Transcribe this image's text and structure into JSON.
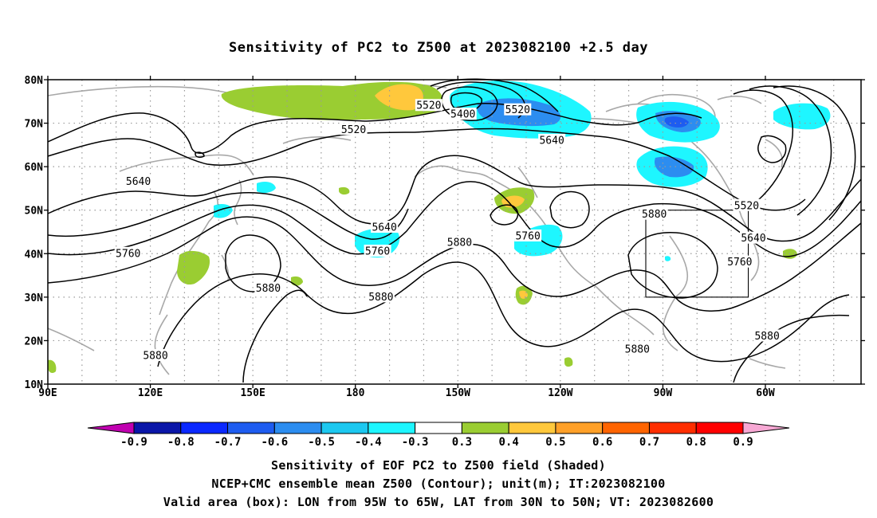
{
  "title": "Sensitivity of PC2 to Z500 at 2023082100 +2.5 day",
  "map": {
    "lon_labels": [
      "90E",
      "120E",
      "150E",
      "180",
      "150W",
      "120W",
      "90W",
      "60W"
    ],
    "lat_labels": [
      "80N",
      "70N",
      "60N",
      "50N",
      "40N",
      "30N",
      "20N",
      "10N"
    ],
    "contour_labels": [
      {
        "text": "5520",
        "lon": -158.5,
        "lat": 74.0
      },
      {
        "text": "5400",
        "lon": -148.5,
        "lat": 72.0
      },
      {
        "text": "5520",
        "lon": -132.5,
        "lat": 73.0
      },
      {
        "text": "5520",
        "lon": -180.5,
        "lat": 68.5
      },
      {
        "text": "5640",
        "lon": -122.5,
        "lat": 66.0
      },
      {
        "text": "5640",
        "lon": 116.5,
        "lat": 56.5
      },
      {
        "text": "5520",
        "lon": -65.5,
        "lat": 51.0
      },
      {
        "text": "5880",
        "lon": -92.5,
        "lat": 49.0
      },
      {
        "text": "5640",
        "lon": -171.5,
        "lat": 46.0
      },
      {
        "text": "5760",
        "lon": -129.5,
        "lat": 44.0
      },
      {
        "text": "5640",
        "lon": -63.5,
        "lat": 43.5
      },
      {
        "text": "5880",
        "lon": -149.5,
        "lat": 42.5
      },
      {
        "text": "5760",
        "lon": -173.5,
        "lat": 40.5
      },
      {
        "text": "5760",
        "lon": 113.5,
        "lat": 40.0
      },
      {
        "text": "5760",
        "lon": -67.5,
        "lat": 38.0
      },
      {
        "text": "5880",
        "lon": 154.5,
        "lat": 32.0
      },
      {
        "text": "5880",
        "lon": -172.5,
        "lat": 30.0
      },
      {
        "text": "5880",
        "lon": -59.5,
        "lat": 21.0
      },
      {
        "text": "5880",
        "lon": -97.5,
        "lat": 18.0
      },
      {
        "text": "5880",
        "lon": 121.5,
        "lat": 16.5
      }
    ],
    "valid_box": {
      "lon_min": -95,
      "lon_max": -65,
      "lat_min": 30,
      "lat_max": 50
    }
  },
  "colorbar": {
    "labels": [
      "-0.9",
      "-0.8",
      "-0.7",
      "-0.6",
      "-0.5",
      "-0.4",
      "-0.3",
      "0.3",
      "0.4",
      "0.5",
      "0.6",
      "0.7",
      "0.8",
      "0.9"
    ],
    "colors": [
      "#c000b0",
      "#0a16a8",
      "#0a28ff",
      "#1e5cf0",
      "#2c8df0",
      "#1cc8f0",
      "#1ef6ff",
      "#ffffff",
      "#9acd32",
      "#ffc83c",
      "#ffa028",
      "#ff6400",
      "#ff2e00",
      "#ff0000",
      "#f7a8d4"
    ]
  },
  "footer": {
    "line1": "Sensitivity of EOF PC2 to Z500 field (Shaded)",
    "line2": "NCEP+CMC ensemble mean Z500 (Contour); unit(m); IT:2023082100",
    "line3": "Valid area (box): LON from 95W to 65W, LAT from 30N to 50N; VT: 2023082600"
  }
}
